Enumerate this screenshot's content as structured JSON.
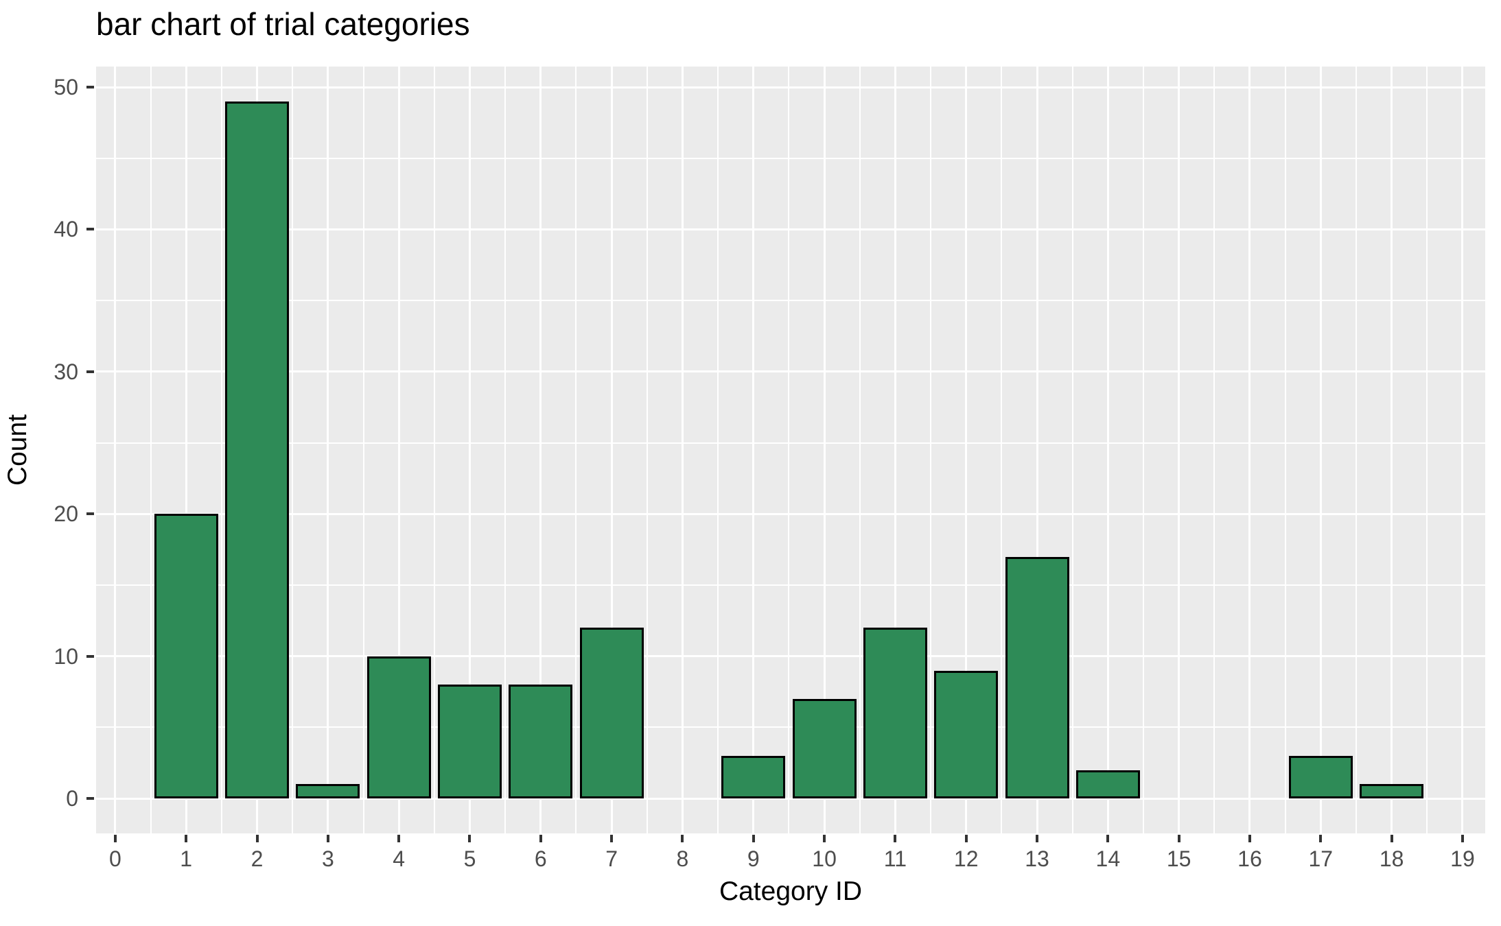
{
  "chart_data": {
    "type": "bar",
    "title": "bar chart of trial categories",
    "xlabel": "Category ID",
    "ylabel": "Count",
    "categories": [
      0,
      1,
      2,
      3,
      4,
      5,
      6,
      7,
      8,
      9,
      10,
      11,
      12,
      13,
      14,
      15,
      16,
      17,
      18,
      19
    ],
    "values": [
      0,
      20,
      49,
      1,
      10,
      8,
      8,
      12,
      0,
      3,
      7,
      12,
      9,
      17,
      2,
      0,
      0,
      3,
      1,
      0
    ],
    "x_ticks": [
      0,
      1,
      2,
      3,
      4,
      5,
      6,
      7,
      8,
      9,
      10,
      11,
      12,
      13,
      14,
      15,
      16,
      17,
      18,
      19
    ],
    "y_ticks": [
      0,
      10,
      20,
      30,
      40,
      50
    ],
    "xlim": [
      -0.27,
      19.32
    ],
    "ylim": [
      -2.45,
      51.45
    ],
    "bar_width": 0.9,
    "grid": "on",
    "legend": "none",
    "colors": {
      "bar_fill": "#2e8b57",
      "bar_stroke": "#000000",
      "panel_background": "#ebebeb",
      "gridline": "#ffffff",
      "tick_label": "#4d4d4d",
      "tick_mark": "#333333",
      "text": "#000000",
      "figure_background": "#ffffff"
    }
  }
}
